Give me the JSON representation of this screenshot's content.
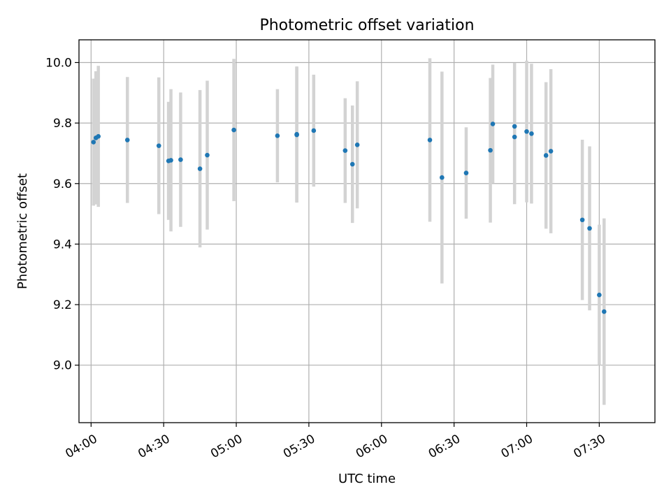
{
  "chart_data": {
    "type": "scatter",
    "title": "Photometric offset variation",
    "xlabel": "UTC time",
    "ylabel": "Photometric offset",
    "x_unit": "UTC time of day (HH:MM)",
    "x_tick_labels": [
      "04:00",
      "04:30",
      "05:00",
      "05:30",
      "06:00",
      "06:30",
      "07:00",
      "07:30"
    ],
    "y_tick_labels": [
      "9.0",
      "9.2",
      "9.4",
      "9.6",
      "9.8",
      "10.0"
    ],
    "y_ticks": [
      9.0,
      9.2,
      9.4,
      9.6,
      9.8,
      10.0
    ],
    "xlim": [
      "03:55",
      "07:53"
    ],
    "ylim": [
      8.81,
      10.075
    ],
    "grid": true,
    "colors": {
      "point": "#1f77b4",
      "errorbar": "#d3d3d3"
    },
    "points": [
      {
        "x": "04:01",
        "y": 9.737,
        "err": 0.21
      },
      {
        "x": "04:02",
        "y": 9.751,
        "err": 0.22
      },
      {
        "x": "04:03",
        "y": 9.756,
        "err": 0.233
      },
      {
        "x": "04:15",
        "y": 9.744,
        "err": 0.208
      },
      {
        "x": "04:28",
        "y": 9.725,
        "err": 0.226
      },
      {
        "x": "04:32",
        "y": 9.675,
        "err": 0.195
      },
      {
        "x": "04:33",
        "y": 9.677,
        "err": 0.235
      },
      {
        "x": "04:37",
        "y": 9.679,
        "err": 0.222
      },
      {
        "x": "04:45",
        "y": 9.649,
        "err": 0.26
      },
      {
        "x": "04:48",
        "y": 9.694,
        "err": 0.246
      },
      {
        "x": "04:59",
        "y": 9.777,
        "err": 0.235
      },
      {
        "x": "05:17",
        "y": 9.758,
        "err": 0.154
      },
      {
        "x": "05:25",
        "y": 9.763,
        "err": 0.224
      },
      {
        "x": "05:25",
        "y": 9.761,
        "err": 0.224
      },
      {
        "x": "05:32",
        "y": 9.775,
        "err": 0.185
      },
      {
        "x": "05:45",
        "y": 9.709,
        "err": 0.173
      },
      {
        "x": "05:48",
        "y": 9.664,
        "err": 0.194
      },
      {
        "x": "05:50",
        "y": 9.728,
        "err": 0.21
      },
      {
        "x": "06:20",
        "y": 9.744,
        "err": 0.27
      },
      {
        "x": "06:25",
        "y": 9.62,
        "err": 0.35
      },
      {
        "x": "06:35",
        "y": 9.635,
        "err": 0.151
      },
      {
        "x": "06:45",
        "y": 9.71,
        "err": 0.239
      },
      {
        "x": "06:46",
        "y": 9.797,
        "err": 0.196
      },
      {
        "x": "06:55",
        "y": 9.789,
        "err": 0.21
      },
      {
        "x": "06:55",
        "y": 9.754,
        "err": 0.222
      },
      {
        "x": "07:00",
        "y": 9.772,
        "err": 0.234
      },
      {
        "x": "07:02",
        "y": 9.765,
        "err": 0.231
      },
      {
        "x": "07:08",
        "y": 9.693,
        "err": 0.242
      },
      {
        "x": "07:10",
        "y": 9.707,
        "err": 0.271
      },
      {
        "x": "07:23",
        "y": 9.48,
        "err": 0.265
      },
      {
        "x": "07:26",
        "y": 9.452,
        "err": 0.271
      },
      {
        "x": "07:30",
        "y": 9.232,
        "err": 0.232
      },
      {
        "x": "07:32",
        "y": 9.177,
        "err": 0.308
      }
    ]
  }
}
